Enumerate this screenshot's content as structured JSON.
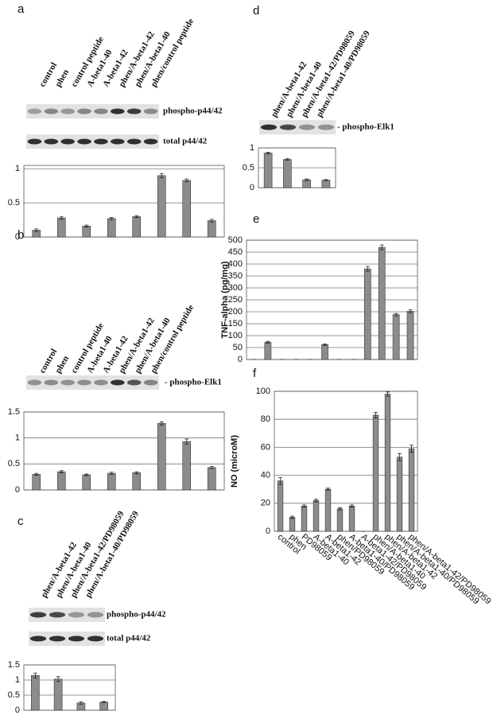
{
  "chart_data": [
    {
      "type": "bar",
      "panel": "a",
      "categories": [
        "control",
        "phen",
        "control peptide",
        "A-beta1-40",
        "A-beta1-42",
        "phen/A-beta1-42",
        "phen/A-beta1-40",
        "phen/control peptide"
      ],
      "blots": [
        "phospho-p44/42",
        "total p44/42"
      ],
      "values": [
        0.1,
        0.28,
        0.16,
        0.27,
        0.3,
        0.9,
        0.83,
        0.24
      ],
      "errors": [
        0.02,
        0.02,
        0.015,
        0.015,
        0.015,
        0.03,
        0.02,
        0.02
      ],
      "ylim": [
        0,
        1.05
      ],
      "yticks": [
        0,
        0.5,
        1
      ],
      "color": "#8c8c8c"
    },
    {
      "type": "bar",
      "panel": "b",
      "categories": [
        "control",
        "phen",
        "control peptide",
        "A-beta1-40",
        "A-beta1-42",
        "phen/A-beta1-42",
        "phen/A-beta1-40",
        "phen/control peptide"
      ],
      "blots": [
        "- phospho-Elk1"
      ],
      "values": [
        0.3,
        0.35,
        0.29,
        0.32,
        0.33,
        1.28,
        0.93,
        0.43
      ],
      "errors": [
        0.02,
        0.02,
        0.015,
        0.02,
        0.02,
        0.03,
        0.05,
        0.02
      ],
      "ylim": [
        0,
        1.5
      ],
      "yticks": [
        0,
        0.5,
        1,
        1.5
      ],
      "color": "#8c8c8c"
    },
    {
      "type": "bar",
      "panel": "c",
      "categories": [
        "phen/A-beta1-42",
        "phen/A-beta1-40",
        "phen/A-beta1-42/PD98059",
        "phen/A-beta1-40/PD98059"
      ],
      "blots": [
        "phospho-p44/42",
        "total p44/42"
      ],
      "values": [
        1.15,
        1.03,
        0.24,
        0.27
      ],
      "errors": [
        0.08,
        0.08,
        0.04,
        0.02
      ],
      "ylim": [
        0,
        1.5
      ],
      "yticks": [
        0,
        0.5,
        1,
        1.5
      ],
      "color": "#8c8c8c"
    },
    {
      "type": "bar",
      "panel": "d",
      "categories": [
        "phen/A-beta1-42",
        "phen/A-beta1-40",
        "phen/A-beta1-42/PD98059",
        "phen/A-beta1-40/PD98059"
      ],
      "blots": [
        "- phospho-Elk1"
      ],
      "values": [
        0.87,
        0.71,
        0.2,
        0.19
      ],
      "errors": [
        0.02,
        0.02,
        0.02,
        0.015
      ],
      "ylim": [
        0,
        1
      ],
      "yticks": [
        0,
        0.5,
        1
      ],
      "color": "#8c8c8c"
    },
    {
      "type": "bar",
      "panel": "e",
      "ylabel": "TNF-alpha (pg/mg)",
      "categories": [
        null,
        null,
        null,
        null,
        null,
        null,
        null,
        null,
        null,
        null,
        null,
        null
      ],
      "values": [
        0,
        72,
        0,
        0,
        0,
        62,
        0,
        0,
        380,
        470,
        188,
        202
      ],
      "errors": [
        0,
        4,
        0,
        0,
        0,
        3,
        0,
        0,
        10,
        10,
        5,
        6
      ],
      "ylim": [
        0,
        500
      ],
      "yticks": [
        0,
        50,
        100,
        150,
        200,
        250,
        300,
        350,
        400,
        450,
        500
      ],
      "color": "#8c8c8c"
    },
    {
      "type": "bar",
      "panel": "f",
      "ylabel": "NO (microM)",
      "categories": [
        "control",
        "phen",
        "PD98059",
        "A-beta1-40",
        "A-beta1-42",
        "phen/PD98059",
        "A-beta1-40/PD98059",
        "A-beta1-42/PD98059",
        "phen/A-beta1-40",
        "phen/A-beta1-42",
        "phen/A-beta1-40/PD98059",
        "phen/A-beta1-42/PD98059"
      ],
      "values": [
        36,
        10,
        18,
        22,
        30,
        16,
        18,
        0,
        83,
        98,
        53,
        59
      ],
      "errors": [
        2.5,
        0.8,
        0.8,
        1,
        0.8,
        0.8,
        0.8,
        0,
        2,
        1.5,
        2.5,
        2.5
      ],
      "ylim": [
        0,
        100
      ],
      "yticks": [
        0,
        20,
        40,
        60,
        80,
        100
      ],
      "color": "#8c8c8c"
    }
  ]
}
